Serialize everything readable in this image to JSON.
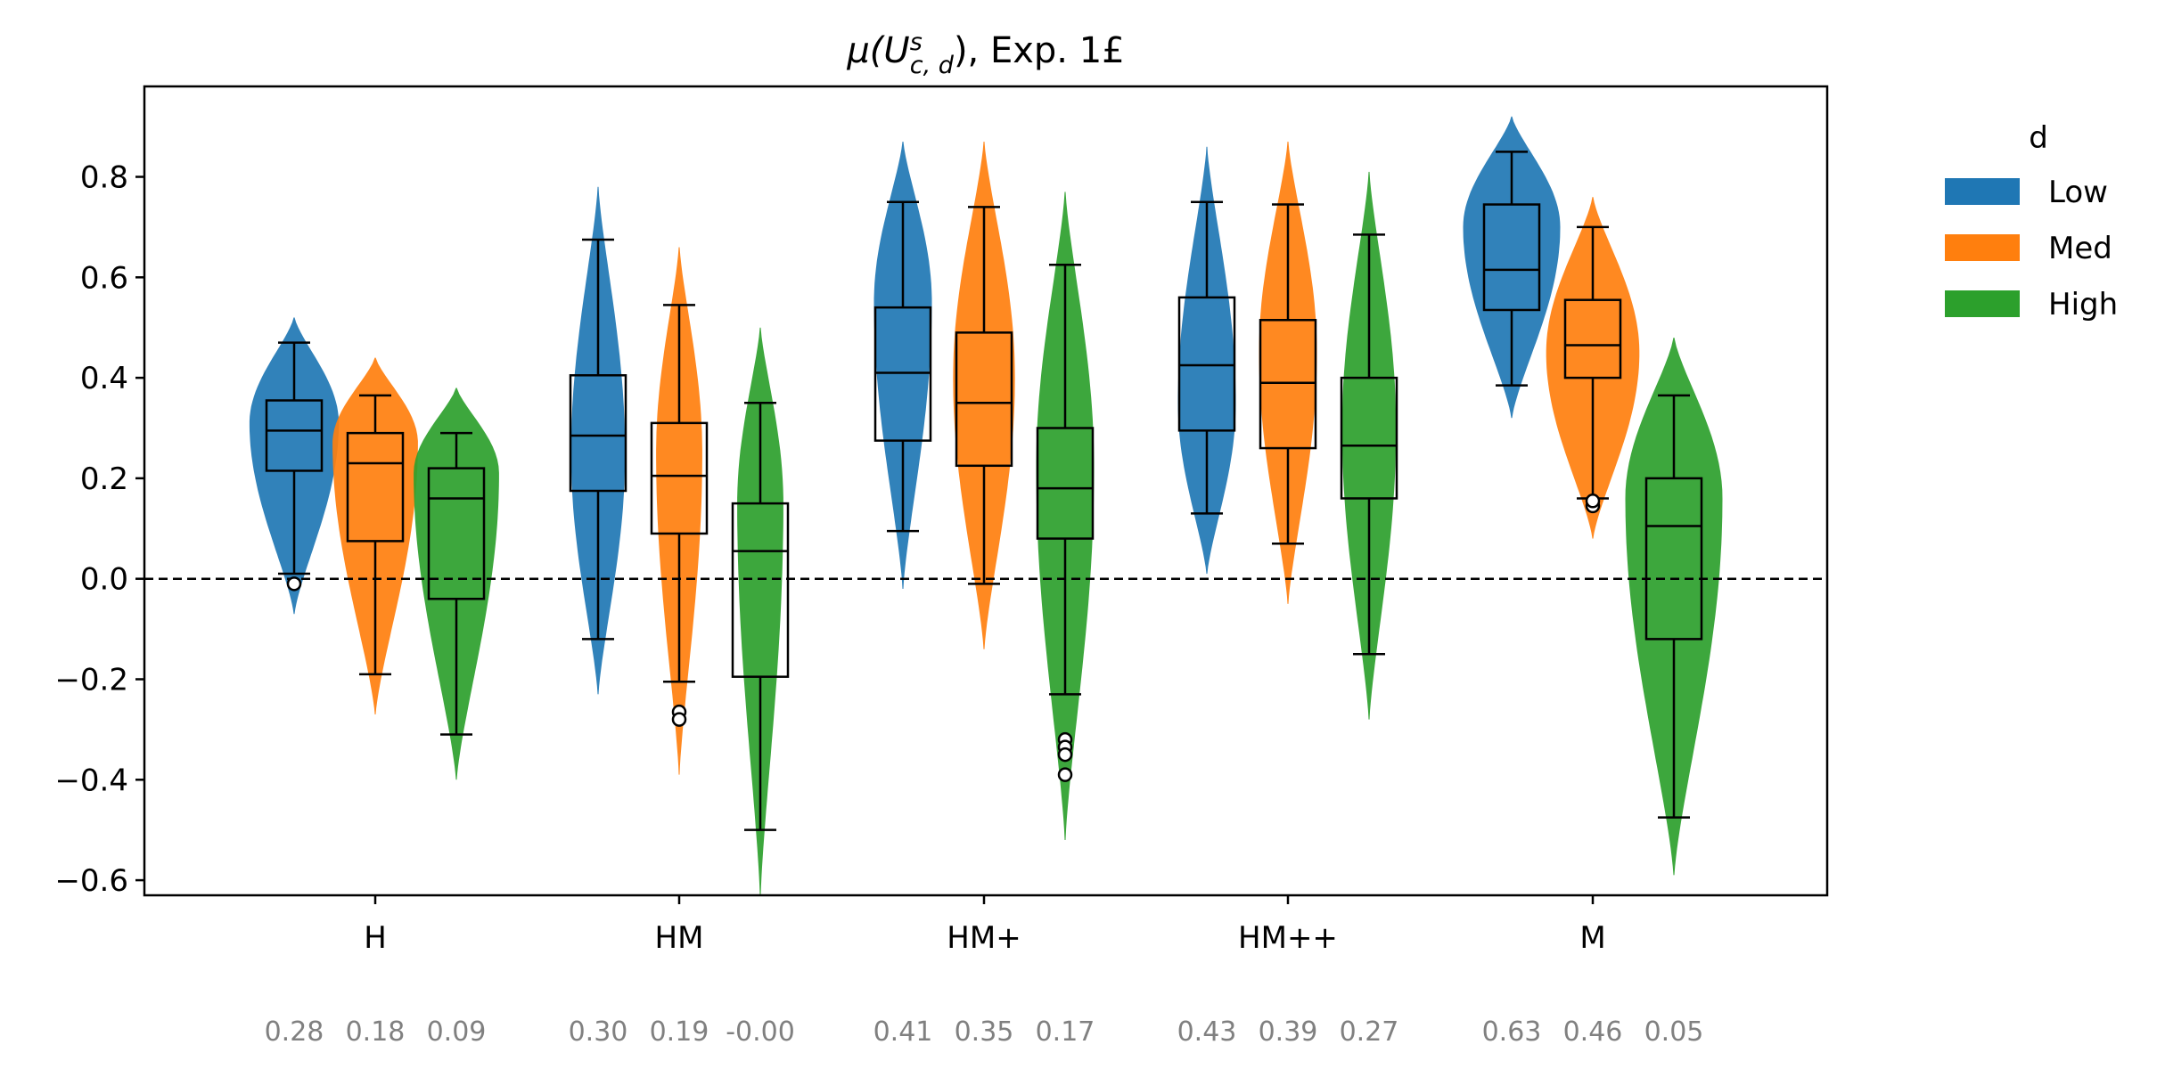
{
  "chart_data": {
    "type": "violin",
    "title_prefix": "μ(U",
    "title_sup": "s",
    "title_sub": "c, d",
    "title_suffix": "), Exp. 1£",
    "xlabel": "",
    "ylabel": "",
    "ylim": [
      -0.63,
      0.98
    ],
    "yticks": [
      -0.6,
      -0.4,
      -0.2,
      0.0,
      0.2,
      0.4,
      0.6,
      0.8
    ],
    "ytick_labels": [
      "−0.6",
      "−0.4",
      "−0.2",
      "0.0",
      "0.2",
      "0.4",
      "0.6",
      "0.8"
    ],
    "reference_line": 0.0,
    "categories": [
      "H",
      "HM",
      "HM+",
      "HM++",
      "M"
    ],
    "legend": {
      "title": "d",
      "entries": [
        {
          "name": "Low",
          "color": "#1f77b4"
        },
        {
          "name": "Med",
          "color": "#ff7f0e"
        },
        {
          "name": "High",
          "color": "#2ca02c"
        }
      ]
    },
    "series": [
      {
        "name": "Low",
        "color": "#1f77b4",
        "groups": [
          {
            "category": "H",
            "mean": "0.28",
            "whisker_low": 0.01,
            "q1": 0.215,
            "median": 0.295,
            "q3": 0.355,
            "whisker_high": 0.47,
            "outliers": [
              -0.01
            ],
            "violin_min": -0.07,
            "violin_max": 0.52,
            "mode": 0.31,
            "width_factor": 0.9
          },
          {
            "category": "HM",
            "mean": "0.30",
            "whisker_low": -0.12,
            "q1": 0.175,
            "median": 0.285,
            "q3": 0.405,
            "whisker_high": 0.675,
            "outliers": [],
            "violin_min": -0.23,
            "violin_max": 0.78,
            "mode": 0.25,
            "width_factor": 0.45
          },
          {
            "category": "HM+",
            "mean": "0.41",
            "whisker_low": 0.095,
            "q1": 0.275,
            "median": 0.41,
            "q3": 0.54,
            "whisker_high": 0.75,
            "outliers": [],
            "violin_min": -0.02,
            "violin_max": 0.87,
            "mode": 0.55,
            "width_factor": 0.5
          },
          {
            "category": "HM++",
            "mean": "0.43",
            "whisker_low": 0.13,
            "q1": 0.295,
            "median": 0.425,
            "q3": 0.56,
            "whisker_high": 0.75,
            "outliers": [],
            "violin_min": 0.01,
            "violin_max": 0.86,
            "mode": 0.35,
            "width_factor": 0.5
          },
          {
            "category": "M",
            "mean": "0.63",
            "whisker_low": 0.385,
            "q1": 0.535,
            "median": 0.615,
            "q3": 0.745,
            "whisker_high": 0.85,
            "outliers": [],
            "violin_min": 0.32,
            "violin_max": 0.92,
            "mode": 0.7,
            "width_factor": 1.0
          }
        ]
      },
      {
        "name": "Med",
        "color": "#ff7f0e",
        "groups": [
          {
            "category": "H",
            "mean": "0.18",
            "whisker_low": -0.19,
            "q1": 0.075,
            "median": 0.23,
            "q3": 0.29,
            "whisker_high": 0.365,
            "outliers": [],
            "violin_min": -0.27,
            "violin_max": 0.44,
            "mode": 0.27,
            "width_factor": 0.85
          },
          {
            "category": "HM",
            "mean": "0.19",
            "whisker_low": -0.205,
            "q1": 0.09,
            "median": 0.205,
            "q3": 0.31,
            "whisker_high": 0.545,
            "outliers": [
              -0.265,
              -0.28
            ],
            "violin_min": -0.39,
            "violin_max": 0.66,
            "mode": 0.25,
            "width_factor": 0.35
          },
          {
            "category": "HM+",
            "mean": "0.35",
            "whisker_low": -0.01,
            "q1": 0.225,
            "median": 0.35,
            "q3": 0.49,
            "whisker_high": 0.74,
            "outliers": [],
            "violin_min": -0.14,
            "violin_max": 0.87,
            "mode": 0.4,
            "width_factor": 0.55
          },
          {
            "category": "HM++",
            "mean": "0.39",
            "whisker_low": 0.07,
            "q1": 0.26,
            "median": 0.39,
            "q3": 0.515,
            "whisker_high": 0.745,
            "outliers": [],
            "violin_min": -0.05,
            "violin_max": 0.87,
            "mode": 0.45,
            "width_factor": 0.5
          },
          {
            "category": "M",
            "mean": "0.46",
            "whisker_low": 0.16,
            "q1": 0.4,
            "median": 0.465,
            "q3": 0.555,
            "whisker_high": 0.7,
            "outliers": [
              0.145,
              0.155
            ],
            "violin_min": 0.08,
            "violin_max": 0.76,
            "mode": 0.45,
            "width_factor": 0.95
          }
        ]
      },
      {
        "name": "High",
        "color": "#2ca02c",
        "groups": [
          {
            "category": "H",
            "mean": "0.09",
            "whisker_low": -0.31,
            "q1": -0.04,
            "median": 0.16,
            "q3": 0.22,
            "whisker_high": 0.29,
            "outliers": [],
            "violin_min": -0.4,
            "violin_max": 0.38,
            "mode": 0.21,
            "width_factor": 0.85
          },
          {
            "category": "HM",
            "mean": "-0.00",
            "whisker_low": -0.5,
            "q1": -0.195,
            "median": 0.055,
            "q3": 0.15,
            "whisker_high": 0.35,
            "outliers": [],
            "violin_min": -0.63,
            "violin_max": 0.5,
            "mode": 0.15,
            "width_factor": 0.35
          },
          {
            "category": "HM+",
            "mean": "0.17",
            "whisker_low": -0.23,
            "q1": 0.08,
            "median": 0.18,
            "q3": 0.3,
            "whisker_high": 0.625,
            "outliers": [
              -0.32,
              -0.335,
              -0.35,
              -0.39
            ],
            "violin_min": -0.52,
            "violin_max": 0.77,
            "mode": 0.22,
            "width_factor": 0.5
          },
          {
            "category": "HM++",
            "mean": "0.27",
            "whisker_low": -0.15,
            "q1": 0.16,
            "median": 0.265,
            "q3": 0.4,
            "whisker_high": 0.685,
            "outliers": [],
            "violin_min": -0.28,
            "violin_max": 0.81,
            "mode": 0.3,
            "width_factor": 0.45
          },
          {
            "category": "M",
            "mean": "0.05",
            "whisker_low": -0.475,
            "q1": -0.12,
            "median": 0.105,
            "q3": 0.2,
            "whisker_high": 0.365,
            "outliers": [],
            "violin_min": -0.59,
            "violin_max": 0.48,
            "mode": 0.16,
            "width_factor": 1.0
          }
        ]
      }
    ]
  }
}
